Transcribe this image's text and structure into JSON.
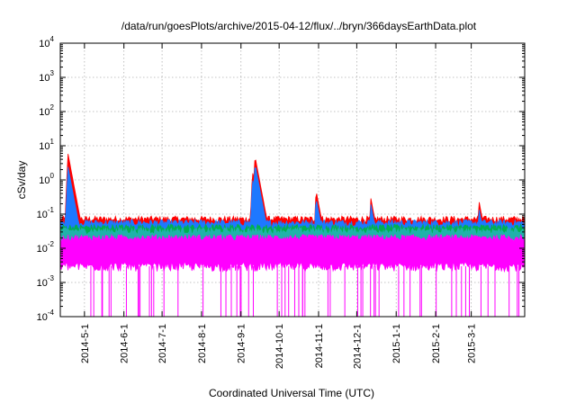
{
  "chart_data": {
    "type": "line",
    "title": "/data/run/goesPlots/archive/2015-04-12/flux/../bryn/366daysEarthData.plot",
    "xlabel": "Coordinated Universal Time (UTC)",
    "ylabel": "cSv/day",
    "yscale": "log",
    "ylim": [
      0.0001,
      10000
    ],
    "xlim": [
      "2014-04-12",
      "2015-04-12"
    ],
    "grid": true,
    "y_ticks": [
      {
        "value": 0.0001,
        "base": "10",
        "exp": "-4"
      },
      {
        "value": 0.001,
        "base": "10",
        "exp": "-3"
      },
      {
        "value": 0.01,
        "base": "10",
        "exp": "-2"
      },
      {
        "value": 0.1,
        "base": "10",
        "exp": "-1"
      },
      {
        "value": 1,
        "base": "10",
        "exp": "0"
      },
      {
        "value": 10,
        "base": "10",
        "exp": "1"
      },
      {
        "value": 100,
        "base": "10",
        "exp": "2"
      },
      {
        "value": 1000,
        "base": "10",
        "exp": "3"
      },
      {
        "value": 10000,
        "base": "10",
        "exp": "4"
      }
    ],
    "x_ticks": [
      {
        "label": "2014-5-1",
        "date": "2014-05-01"
      },
      {
        "label": "2014-6-1",
        "date": "2014-06-01"
      },
      {
        "label": "2014-7-1",
        "date": "2014-07-01"
      },
      {
        "label": "2014-8-1",
        "date": "2014-08-01"
      },
      {
        "label": "2014-9-1",
        "date": "2014-09-01"
      },
      {
        "label": "2014-10-1",
        "date": "2014-10-01"
      },
      {
        "label": "2014-11-1",
        "date": "2014-11-01"
      },
      {
        "label": "2014-12-1",
        "date": "2014-12-01"
      },
      {
        "label": "2015-1-1",
        "date": "2015-01-01"
      },
      {
        "label": "2015-2-1",
        "date": "2015-02-01"
      },
      {
        "label": "2015-3-1",
        "date": "2015-03-01"
      }
    ],
    "series": [
      {
        "color": "#ff0000",
        "baseline": 0.07,
        "spikes": [
          {
            "x": "2014-04-18",
            "y": 6
          },
          {
            "x": "2014-09-10",
            "y": 1.8
          },
          {
            "x": "2014-09-12",
            "y": 5
          },
          {
            "x": "2014-10-30",
            "y": 0.5
          },
          {
            "x": "2014-12-12",
            "y": 0.3
          },
          {
            "x": "2015-03-07",
            "y": 0.25
          }
        ]
      },
      {
        "color": "#1e78ff",
        "baseline": 0.055,
        "spikes": [
          {
            "x": "2014-04-18",
            "y": 2.5
          },
          {
            "x": "2014-09-10",
            "y": 1.1
          },
          {
            "x": "2014-09-12",
            "y": 3
          },
          {
            "x": "2014-10-30",
            "y": 0.3
          },
          {
            "x": "2014-12-12",
            "y": 0.2
          },
          {
            "x": "2015-03-07",
            "y": 0.15
          }
        ]
      },
      {
        "color": "#00b050",
        "baseline": 0.04
      },
      {
        "color": "#20b2aa",
        "baseline": 0.032
      },
      {
        "color": "#ff00ff",
        "baseline": 0.02,
        "floor": 0.003,
        "dropouts": 0.0001
      }
    ]
  }
}
